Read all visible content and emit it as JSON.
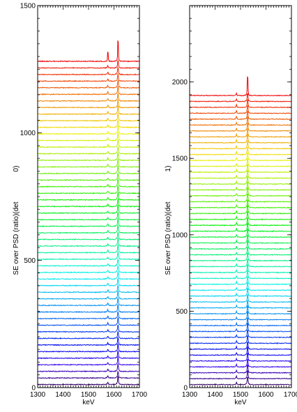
{
  "chart_data": [
    {
      "type": "line",
      "panel": "left",
      "title": "",
      "xlabel": "keV",
      "ylabel": "SE over PSD (ratio)(det",
      "ylabel_suffix": "0)",
      "xlim": [
        1300,
        1700
      ],
      "ylim": [
        0,
        1500
      ],
      "x_ticks": [
        1300,
        1400,
        1500,
        1600,
        1700
      ],
      "y_ticks": [
        0,
        500,
        1000,
        1500
      ],
      "grid": false,
      "legend": "none",
      "stack": {
        "count": 50,
        "spacing": 25.9,
        "base_offset": 12
      },
      "peaks": [
        {
          "x": 1576,
          "heights": [
            20,
            14
          ]
        },
        {
          "x": 1616,
          "heights": [
            62,
            52
          ]
        }
      ],
      "top_trace_peaks": [
        {
          "x": 1576,
          "y": 1315
        },
        {
          "x": 1616,
          "y": 1345
        }
      ],
      "color_map": "rainbow (purple at bottom → red at top)"
    },
    {
      "type": "line",
      "panel": "right",
      "title": "",
      "xlabel": "keV",
      "ylabel": "SE over PSD (ratio)(det",
      "ylabel_suffix": "1)",
      "xlim": [
        1300,
        1700
      ],
      "ylim": [
        0,
        2500
      ],
      "x_ticks": [
        1300,
        1400,
        1500,
        1600,
        1700
      ],
      "y_ticks": [
        0,
        500,
        1000,
        1500,
        2000
      ],
      "grid": false,
      "legend": "none",
      "stack": {
        "count": 50,
        "spacing": 38.6,
        "base_offset": 20
      },
      "peaks": [
        {
          "x": 1484,
          "heights": [
            22,
            10
          ]
        },
        {
          "x": 1528,
          "heights": [
            70,
            45
          ]
        }
      ],
      "top_trace_peaks": [
        {
          "x": 1528,
          "y": 2000
        }
      ],
      "color_map": "rainbow (purple at bottom → red at top)"
    }
  ],
  "colors": {
    "axis": "#000000",
    "background": "#ffffff"
  }
}
